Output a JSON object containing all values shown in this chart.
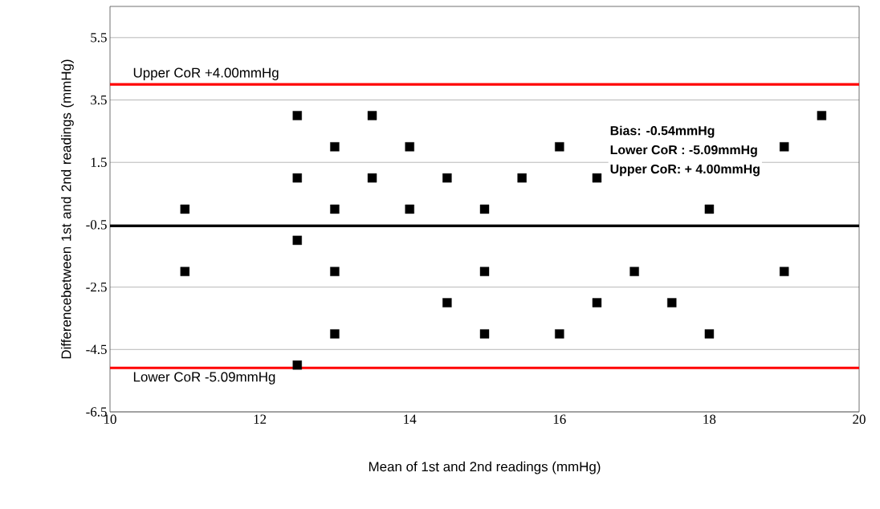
{
  "chart_data": {
    "type": "scatter",
    "xlabel": "Mean of 1st and 2nd readings (mmHg)",
    "ylabel": "Differencebetween 1st and 2nd readings (mmHg)",
    "x": [
      11,
      11,
      12.5,
      12.5,
      12.5,
      12.5,
      13,
      13,
      13,
      13,
      13.5,
      13.5,
      14,
      14,
      14.5,
      14.5,
      15,
      15,
      15,
      15.5,
      16,
      16,
      16.5,
      16.5,
      17,
      17.5,
      18,
      18,
      19,
      19,
      19.5
    ],
    "values": [
      0,
      -2,
      3,
      1,
      -1,
      -5,
      2,
      0,
      -2,
      -4,
      3,
      1,
      2,
      0,
      1,
      -3,
      0,
      -2,
      -4,
      1,
      2,
      -4,
      1,
      -3,
      -2,
      -3,
      0,
      -4,
      2,
      -2,
      3
    ],
    "color": "#000000",
    "marker": "square",
    "xlim": [
      10,
      20
    ],
    "xticks": [
      10,
      12,
      14,
      16,
      18,
      20
    ],
    "ylim": [
      -6.5,
      6.5
    ],
    "yticks": [
      -6.5,
      -4.5,
      -2.5,
      -0.5,
      1.5,
      3.5,
      5.5
    ],
    "grid": "y",
    "ref_lines": [
      {
        "axis": "y",
        "value": 4.0,
        "label": "Upper CoR +4.00mmHg",
        "color": "#ff0000"
      },
      {
        "axis": "y",
        "value": -0.54,
        "color": "#000000"
      },
      {
        "axis": "y",
        "value": -5.09,
        "label": "Lower CoR -5.09mmHg",
        "color": "#ff0000"
      }
    ],
    "annotations": [
      "Bias: -0.54mmHg",
      "Lower CoR : -5.09mmHg",
      "Upper CoR: + 4.00mmHg"
    ]
  }
}
